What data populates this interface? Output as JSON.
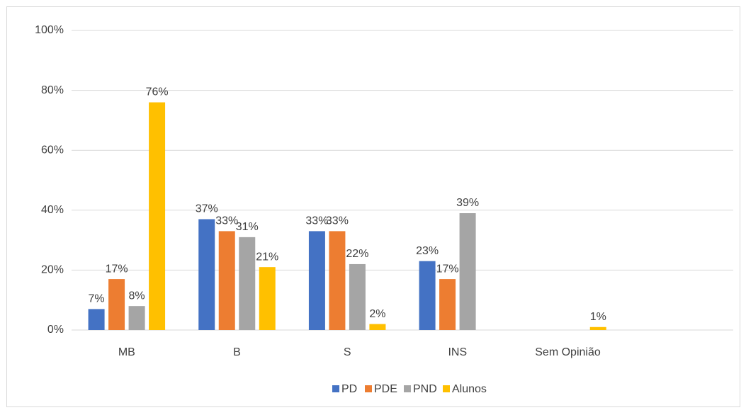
{
  "chart_data": {
    "type": "bar",
    "categories": [
      "MB",
      "B",
      "S",
      "INS",
      "Sem Opinião",
      null
    ],
    "series": [
      {
        "name": "PD",
        "color": "#4472c4",
        "values": [
          7,
          37,
          33,
          23,
          null,
          null
        ],
        "value_labels": [
          "7%",
          "37%",
          "33%",
          "23%",
          null,
          null
        ]
      },
      {
        "name": "PDE",
        "color": "#ed7d31",
        "values": [
          17,
          33,
          33,
          17,
          null,
          null
        ],
        "value_labels": [
          "17%",
          "33%",
          "33%",
          "17%",
          null,
          null
        ]
      },
      {
        "name": "PND",
        "color": "#a5a5a5",
        "values": [
          8,
          31,
          22,
          39,
          null,
          null
        ],
        "value_labels": [
          "8%",
          "31%",
          "22%",
          "39%",
          null,
          null
        ]
      },
      {
        "name": "Alunos",
        "color": "#ffc000",
        "values": [
          76,
          21,
          2,
          null,
          1,
          null
        ],
        "value_labels": [
          "76%",
          "21%",
          "2%",
          null,
          "1%",
          null
        ]
      }
    ],
    "ylim": [
      0,
      100
    ],
    "yticks": [
      {
        "value": 0,
        "label": "0%"
      },
      {
        "value": 20,
        "label": "20%"
      },
      {
        "value": 40,
        "label": "40%"
      },
      {
        "value": 60,
        "label": "60%"
      },
      {
        "value": 80,
        "label": "80%"
      },
      {
        "value": 100,
        "label": "100%"
      }
    ],
    "grid": true,
    "legend": "bottom"
  }
}
